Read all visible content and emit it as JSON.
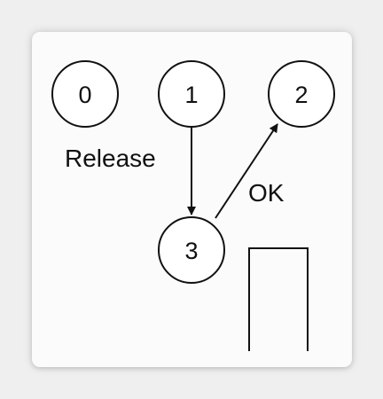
{
  "diagram": {
    "nodes": [
      {
        "id": "0",
        "label": "0"
      },
      {
        "id": "1",
        "label": "1"
      },
      {
        "id": "2",
        "label": "2"
      },
      {
        "id": "3",
        "label": "3"
      }
    ],
    "edges": [
      {
        "from": "1",
        "to": "3",
        "label": "Release"
      },
      {
        "from": "3",
        "to": "2",
        "label": "OK"
      }
    ]
  }
}
